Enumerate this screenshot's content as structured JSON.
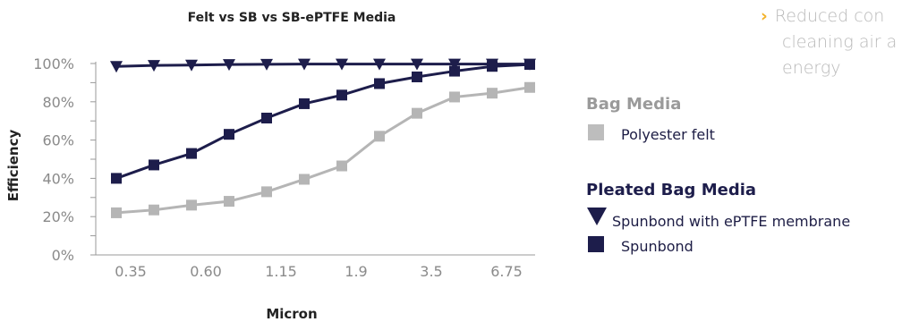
{
  "chart_data": {
    "type": "line",
    "title": "Felt vs SB vs SB-ePTFE Media",
    "xlabel": "Micron",
    "ylabel": "Efficiency",
    "x_tick_labels": [
      "0.35",
      "0.60",
      "1.15",
      "1.9",
      "3.5",
      "6.75"
    ],
    "y_ticks": [
      "0%",
      "20%",
      "40%",
      "60%",
      "80%",
      "100%"
    ],
    "ylim": [
      0,
      100
    ],
    "num_points": 12,
    "series": [
      {
        "name": "Spunbond with ePTFE membrane",
        "color": "#1d1d4b",
        "marker": "triangle-down",
        "values": [
          98.5,
          99,
          99.2,
          99.5,
          99.6,
          99.7,
          99.7,
          99.7,
          99.7,
          99.7,
          99.7,
          99.7
        ]
      },
      {
        "name": "Spunbond",
        "color": "#1d1d4b",
        "marker": "square",
        "values": [
          40,
          47,
          53,
          63,
          71.5,
          79,
          83.5,
          89.5,
          93,
          96,
          98.5,
          99.5
        ]
      },
      {
        "name": "Polyester felt",
        "color": "#b5b5b5",
        "marker": "square",
        "values": [
          22,
          23.5,
          26,
          28,
          33,
          39.5,
          46.5,
          62,
          74,
          82.5,
          84.5,
          87.5
        ]
      }
    ]
  },
  "legend": {
    "bag_title": "Bag Media",
    "bag_items": [
      "Polyester felt"
    ],
    "pleated_title": "Pleated Bag Media",
    "pleated_items": [
      "Spunbond with ePTFE membrane",
      "Spunbond"
    ]
  },
  "top_bullet": {
    "line1": "Reduced con",
    "line2": "cleaning air a",
    "line3": "energy"
  },
  "colors": {
    "navy": "#1d1d4b",
    "gray": "#b5b5b5",
    "bag_title": "#999999",
    "pleated_title": "#1d1d4b",
    "bullet_arrow": "#f3b229"
  }
}
